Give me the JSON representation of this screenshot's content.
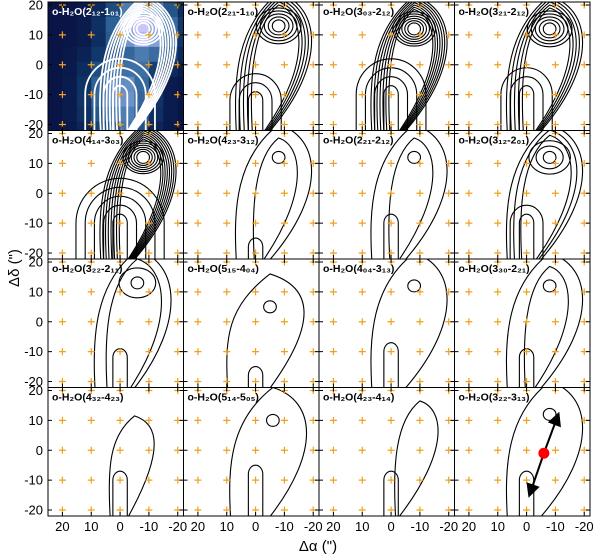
{
  "chart_data": {
    "type": "contour",
    "rows": 4,
    "cols": 4,
    "xlabel": "Δα (\")",
    "ylabel": "Δδ (\")",
    "xlim": [
      25,
      -22
    ],
    "ylim": [
      -22,
      21
    ],
    "xticks": [
      20,
      10,
      0,
      -10,
      -20
    ],
    "yticks": [
      -20,
      -10,
      0,
      10,
      20
    ],
    "grid_points": {
      "x": [
        20,
        10,
        0,
        -10,
        -20
      ],
      "y": [
        -20,
        -10,
        0,
        10,
        20
      ],
      "marker": "+",
      "color": "#f0a020"
    },
    "panels": [
      {
        "title": "o-H₂O(2₁₂-1₀₁)",
        "levels": 12,
        "peak": [
          -8,
          12
        ],
        "south": [
          0,
          -10
        ],
        "heatmap": true
      },
      {
        "title": "o-H₂O(2₂₁-1₁₀)",
        "levels": 10,
        "peak": [
          -8,
          13
        ],
        "south": [
          0,
          -12
        ]
      },
      {
        "title": "o-H₂O(3₀₃-2₁₂)",
        "levels": 13,
        "peak": [
          -8,
          12
        ],
        "south": [
          0,
          -10
        ]
      },
      {
        "title": "o-H₂O(3₂₁-2₁₂)",
        "levels": 10,
        "peak": [
          -8,
          12
        ],
        "south": [
          0,
          -10
        ]
      },
      {
        "title": "o-H₂O(4₁₄-3₀₃)",
        "levels": 14,
        "peak": [
          -8,
          12
        ],
        "south": [
          0,
          -10
        ]
      },
      {
        "title": "o-H₂O(4₂₃-3₁₂)",
        "levels": 3,
        "peak": [
          -8,
          12
        ],
        "south": [
          0,
          -18
        ]
      },
      {
        "title": "o-H₂O(2₂₁-2₁₂)",
        "levels": 3,
        "peak": [
          -8,
          12
        ],
        "south": [
          0,
          -10
        ]
      },
      {
        "title": "o-H₂O(3₁₂-2₀₁)",
        "levels": 6,
        "peak": [
          -8,
          12
        ],
        "south": [
          0,
          -10
        ]
      },
      {
        "title": "o-H₂O(3₂₂-2₁₁)",
        "levels": 4,
        "peak": [
          -6,
          13
        ],
        "south": [
          0,
          -12
        ]
      },
      {
        "title": "o-H₂O(5₁₅-4₀₄)",
        "levels": 2,
        "peak": [
          -5,
          5
        ],
        "south": [
          0,
          -18
        ]
      },
      {
        "title": "o-H₂O(4₀₄-3₁₃)",
        "levels": 2,
        "peak": [
          -8,
          12
        ],
        "south": [
          0,
          -10
        ]
      },
      {
        "title": "o-H₂O(3₃₀-2₂₁)",
        "levels": 3,
        "peak": [
          -8,
          12
        ],
        "south": [
          0,
          -12
        ]
      },
      {
        "title": "o-H₂O(4₃₂-4₂₃)",
        "levels": 1,
        "peak": [
          -5,
          5
        ],
        "south": [
          0,
          -10
        ]
      },
      {
        "title": "o-H₂O(5₁₄-5₀₅)",
        "levels": 2,
        "peak": [
          -6,
          10
        ],
        "south": [
          0,
          -8
        ]
      },
      {
        "title": "o-H₂O(4₂₃-4₁₄)",
        "levels": 1,
        "peak": [
          -10,
          10
        ],
        "south": [
          0,
          -10
        ]
      },
      {
        "title": "o-H₂O(3₂₂-3₁₃)",
        "levels": 2,
        "peak": [
          -8,
          12
        ],
        "south": [
          0,
          -10
        ],
        "arrows": true
      }
    ],
    "annotation": {
      "center": [
        -6,
        -1
      ],
      "center_color": "#ff0000",
      "arrow_tips": [
        [
          -11,
          12
        ],
        [
          -1,
          -15
        ]
      ]
    }
  }
}
